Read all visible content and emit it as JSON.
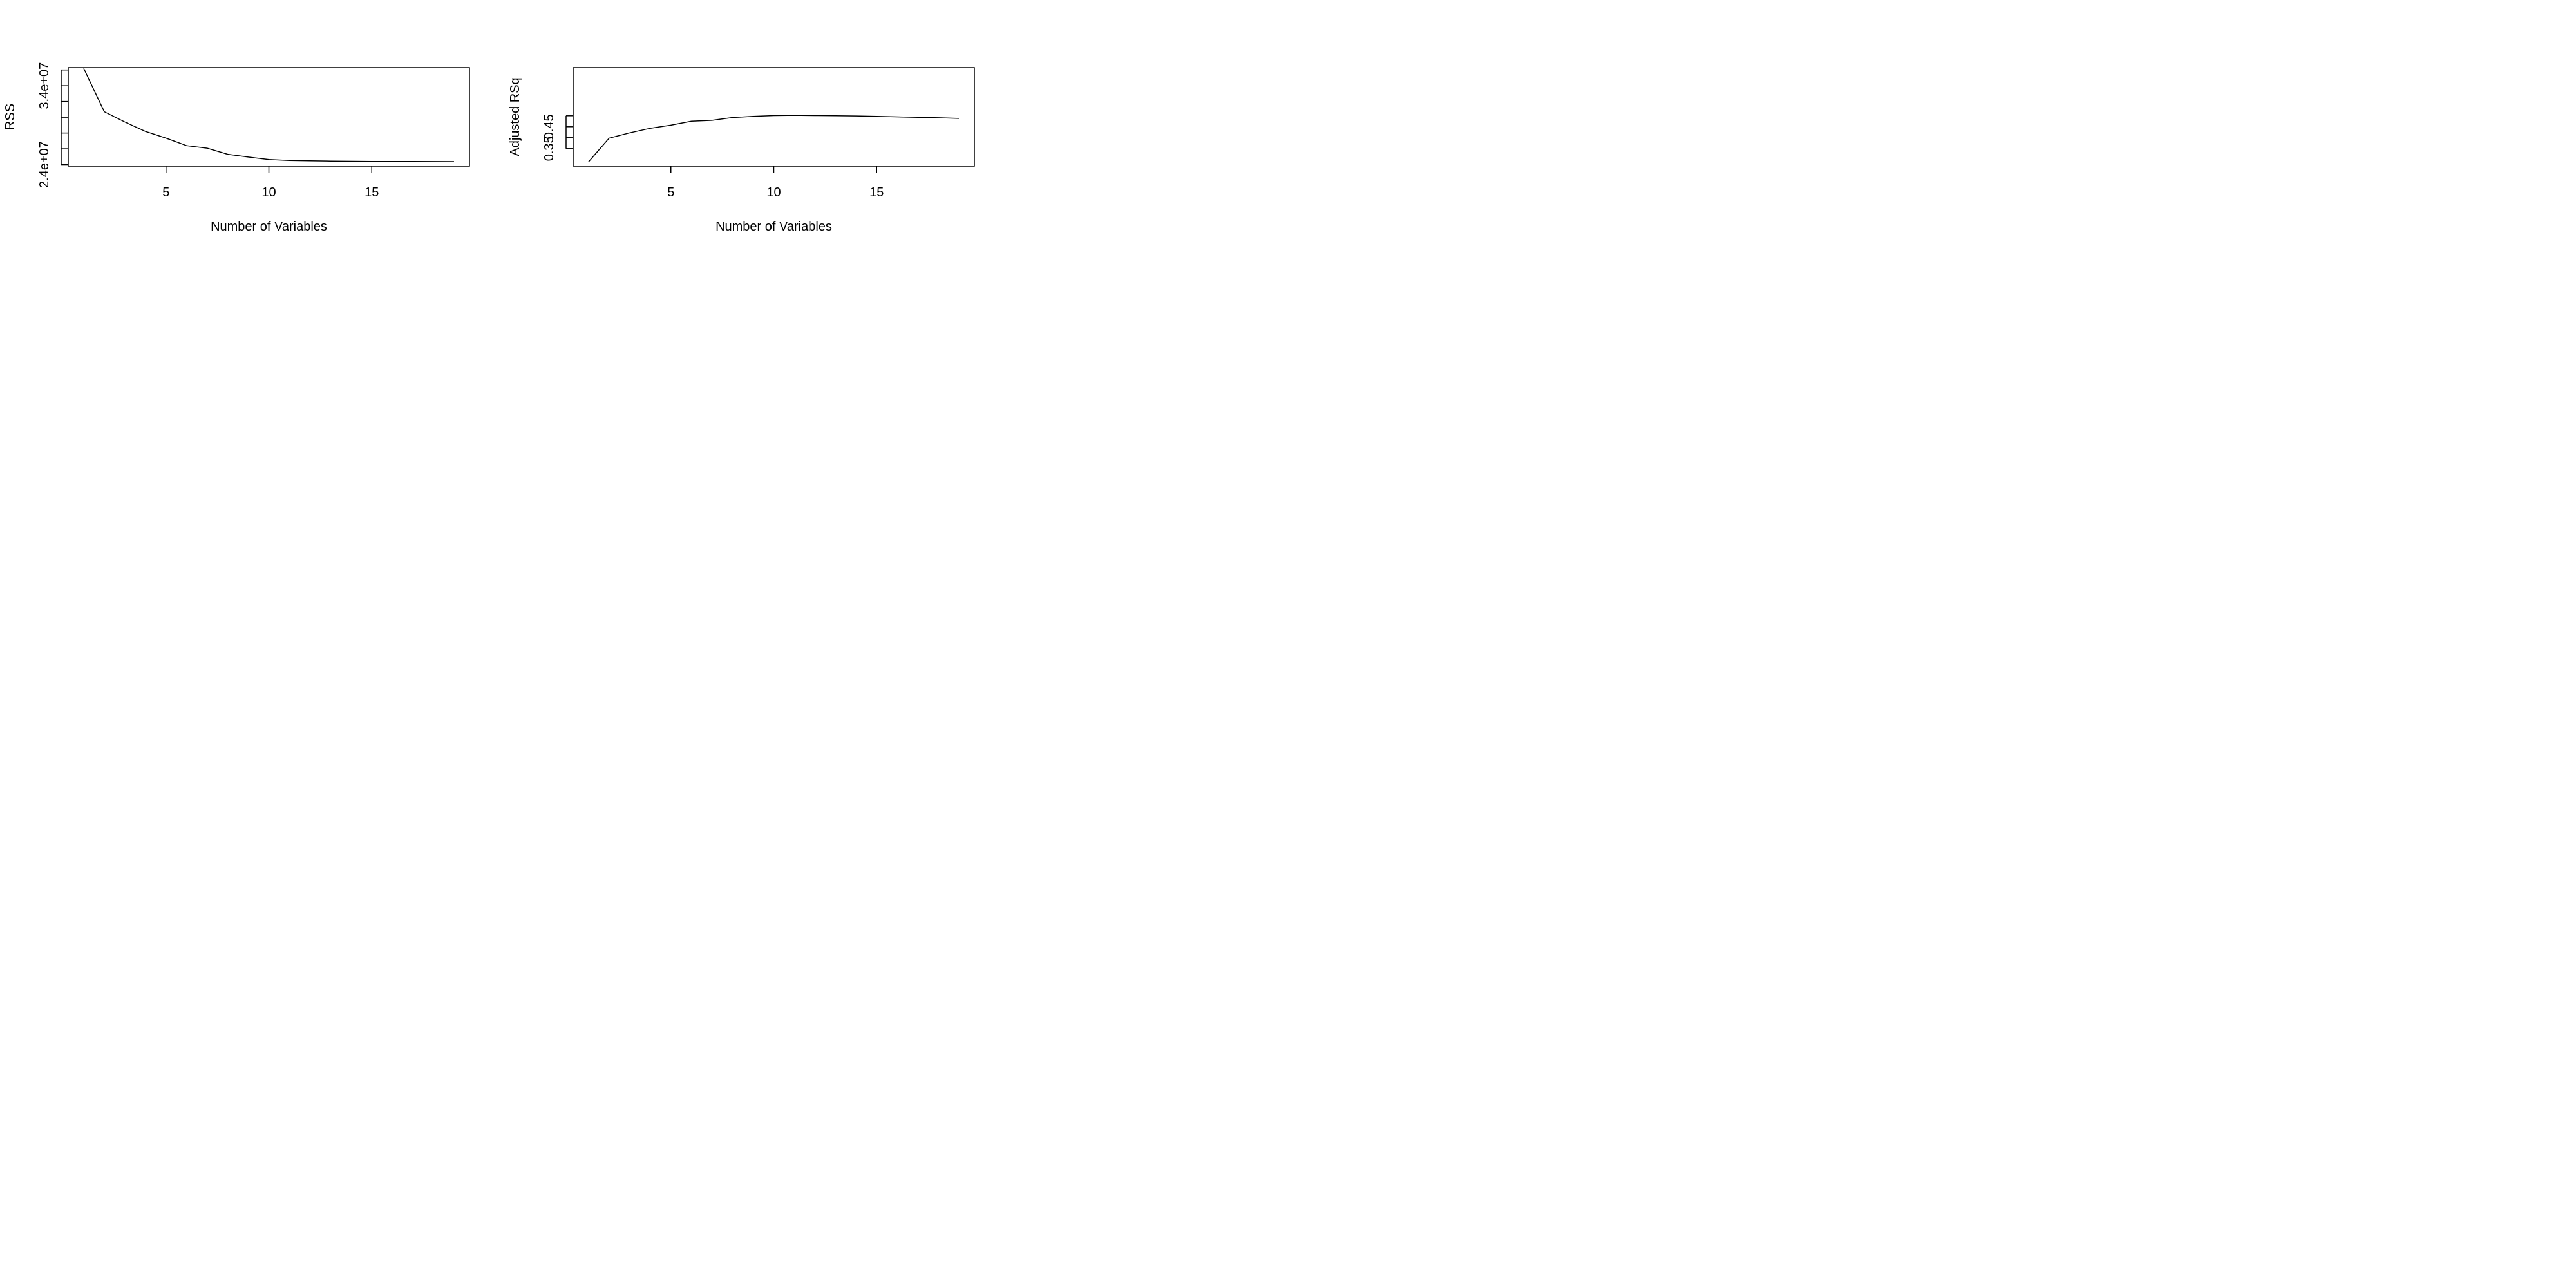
{
  "chart_data": [
    {
      "type": "line",
      "title": "",
      "xlabel": "Number of Variables",
      "ylabel": "RSS",
      "xlim": [
        0.25,
        19.75
      ],
      "ylim": [
        23800000,
        36300000
      ],
      "x_ticks": [
        5,
        10,
        15
      ],
      "x_tick_labels": [
        "5",
        "10",
        "15"
      ],
      "y_ticks": [
        24000000,
        26000000,
        28000000,
        30000000,
        32000000,
        34000000,
        36000000
      ],
      "y_tick_labels": [
        "2.4e+07",
        "",
        "",
        "",
        "",
        "3.4e+07",
        ""
      ],
      "grid": false,
      "series": [
        {
          "x": [
            1,
            2,
            3,
            4,
            5,
            6,
            7,
            8,
            9,
            10,
            11,
            12,
            13,
            14,
            15,
            16,
            17,
            18,
            19
          ],
          "values": [
            36200000,
            30700000,
            29400000,
            28200000,
            27350000,
            26400000,
            26080000,
            25300000,
            24950000,
            24630000,
            24520000,
            24480000,
            24440000,
            24410000,
            24395000,
            24390000,
            24385000,
            24380000,
            24375000
          ]
        }
      ]
    },
    {
      "type": "line",
      "title": "",
      "xlabel": "Number of Variables",
      "ylabel": "Adjusted RSq",
      "xlim": [
        0.25,
        19.75
      ],
      "ylim": [
        0.27,
        0.72
      ],
      "x_ticks": [
        5,
        10,
        15
      ],
      "x_tick_labels": [
        "5",
        "10",
        "15"
      ],
      "y_ticks": [
        0.35,
        0.4,
        0.45,
        0.5
      ],
      "y_tick_labels": [
        "0.35",
        "",
        "0.45",
        ""
      ],
      "grid": false,
      "series": [
        {
          "x": [
            1,
            2,
            3,
            4,
            5,
            6,
            7,
            8,
            9,
            10,
            11,
            12,
            13,
            14,
            15,
            16,
            17,
            18,
            19
          ],
          "values": [
            0.29,
            0.398,
            0.422,
            0.443,
            0.457,
            0.475,
            0.479,
            0.492,
            0.497,
            0.501,
            0.502,
            0.501,
            0.5,
            0.499,
            0.497,
            0.495,
            0.493,
            0.491,
            0.488
          ]
        }
      ]
    }
  ]
}
